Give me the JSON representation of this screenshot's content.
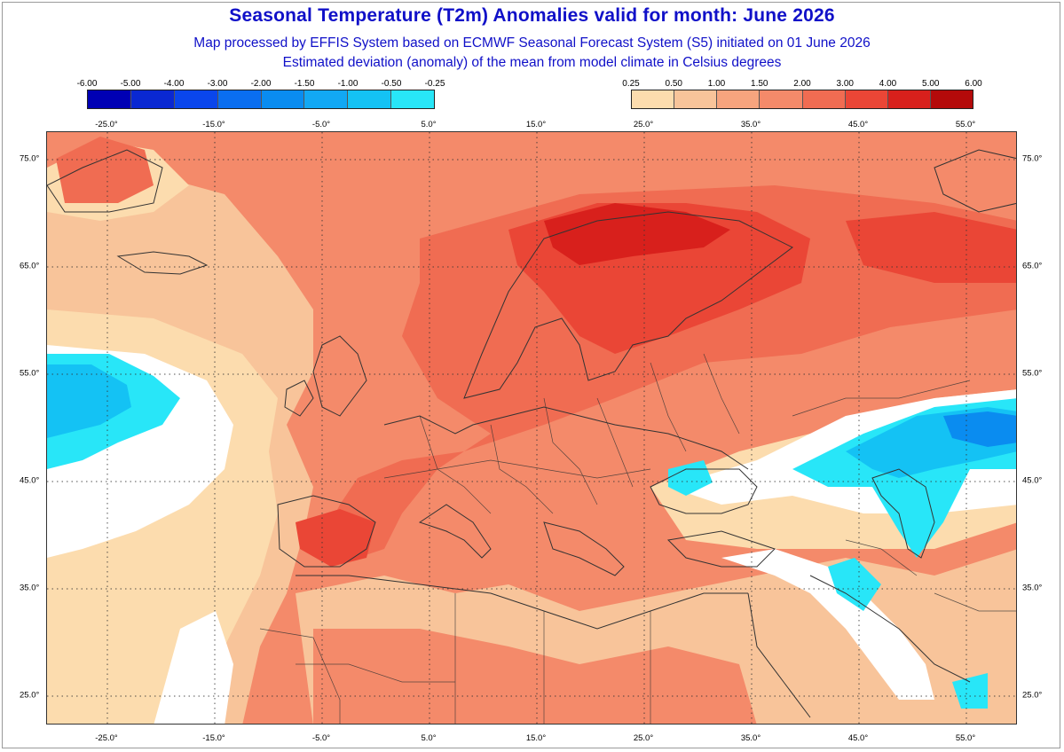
{
  "title": "Seasonal Temperature (T2m) Anomalies valid for month: June 2026",
  "subtitle1": "Map processed by EFFIS System based on ECMWF Seasonal Forecast System (S5) initiated on 01 June 2026",
  "subtitle2": "Estimated deviation (anomaly) of the mean from model climate in Celsius degrees",
  "legend_cold": {
    "labels": [
      "-6.00",
      "-5.00",
      "-4.00",
      "-3.00",
      "-2.00",
      "-1.50",
      "-1.00",
      "-0.50",
      "-0.25"
    ],
    "colors": [
      "#0000b4",
      "#0a28d2",
      "#0a46ec",
      "#0a6ef0",
      "#0a8cf0",
      "#12a8f4",
      "#14c2f4",
      "#28e6f8"
    ]
  },
  "legend_warm": {
    "labels": [
      "0.25",
      "0.50",
      "1.00",
      "1.50",
      "2.00",
      "3.00",
      "4.00",
      "5.00",
      "6.00"
    ],
    "colors": [
      "#fcdcae",
      "#f8c49a",
      "#f6a47e",
      "#f48a6a",
      "#f06c52",
      "#ea4636",
      "#d8201c",
      "#b40a0a"
    ]
  },
  "lon_ticks": [
    "-25.0°",
    "-15.0°",
    "-5.0°",
    "5.0°",
    "15.0°",
    "25.0°",
    "35.0°",
    "45.0°",
    "55.0°"
  ],
  "lat_ticks": [
    "75.0°",
    "65.0°",
    "55.0°",
    "45.0°",
    "35.0°",
    "25.0°"
  ],
  "map_colors": {
    "base": "#f48a6a",
    "light": "#f8c49a",
    "pale": "#fcdcae",
    "white": "#ffffff",
    "mid": "#f06c52",
    "strong": "#ea4636",
    "deep": "#d8201c",
    "cyan": "#28e6f8",
    "lightblue": "#14c2f4",
    "blue": "#0a8cf0"
  }
}
